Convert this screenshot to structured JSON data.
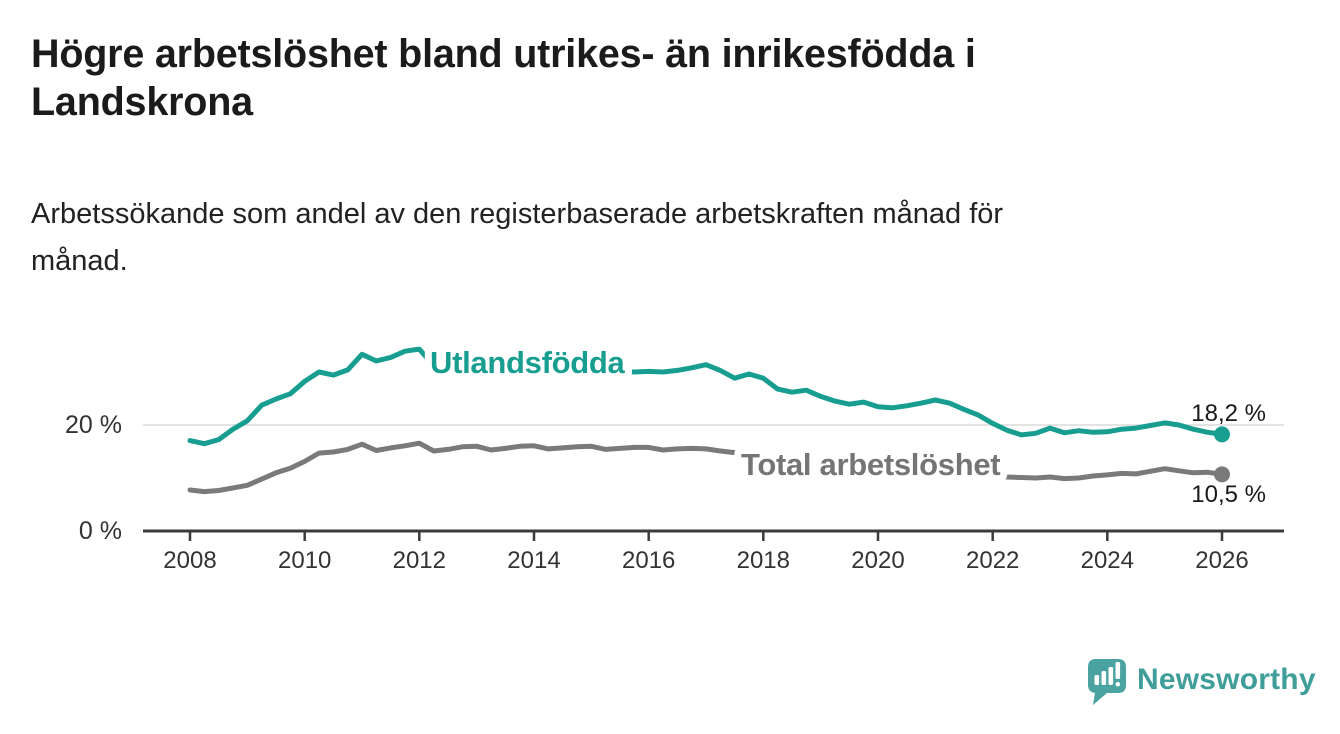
{
  "header": {
    "title_lines": [
      "Högre arbetslöshet bland utrikes- än inrikesfödda i",
      "Landskrona"
    ],
    "subtitle_lines": [
      "Arbetssökande som andel av den registerbaserade arbetskraften månad för",
      "månad."
    ]
  },
  "chart_data": {
    "type": "line",
    "title": "Högre arbetslöshet bland utrikes- än inrikesfödda i Landskrona",
    "subtitle": "Arbetssökande som andel av den registerbaserade arbetskraften månad för månad.",
    "x_unit": "year",
    "x_start": 2008,
    "x_step": 0.25,
    "x_range_shown": [
      2007.2,
      2027.1
    ],
    "ylim": [
      0,
      36
    ],
    "grid": "single horizontal gridline at 20 %",
    "legend_position": "inline-labels-on-lines",
    "x_ticks": [
      2008,
      2010,
      2012,
      2014,
      2016,
      2018,
      2020,
      2022,
      2024,
      2026
    ],
    "y_ticks": [
      {
        "value": 20,
        "label": "20 %"
      },
      {
        "value": 0,
        "label": "0 %"
      }
    ],
    "series": [
      {
        "name": "Utlandsfödda",
        "color": "#189e90",
        "label_color": "#189e90",
        "end_label": "18,2 %",
        "end_value": 18.2,
        "values": [
          17.0,
          16.4,
          17.2,
          19.2,
          20.8,
          23.8,
          25.0,
          26.0,
          28.4,
          30.2,
          29.6,
          30.6,
          33.6,
          32.3,
          33.0,
          34.2,
          34.6,
          31.4,
          31.6,
          31.2,
          31.0,
          30.8,
          30.9,
          30.7,
          30.6,
          30.4,
          30.5,
          30.3,
          30.4,
          30.2,
          30.3,
          30.2,
          30.3,
          30.2,
          30.5,
          31.0,
          31.6,
          30.5,
          29.0,
          29.8,
          29.0,
          26.9,
          26.3,
          26.7,
          25.5,
          24.6,
          24.0,
          24.4,
          23.5,
          23.3,
          23.7,
          24.2,
          24.8,
          24.2,
          23.0,
          21.9,
          20.3,
          19.0,
          18.1,
          18.4,
          19.4,
          18.5,
          18.9,
          18.6,
          18.7,
          19.2,
          19.4,
          19.9,
          20.4,
          20.0,
          19.2,
          18.6,
          18.2
        ]
      },
      {
        "name": "Total arbetslöshet",
        "color": "#7a7a7a",
        "label_color": "#757575",
        "end_label": "10,5 %",
        "end_value": 10.5,
        "values": [
          7.5,
          7.2,
          7.4,
          7.9,
          8.4,
          9.6,
          10.8,
          11.7,
          13.0,
          14.6,
          14.8,
          15.3,
          16.3,
          15.1,
          15.6,
          16.0,
          16.5,
          15.0,
          15.3,
          15.8,
          15.9,
          15.2,
          15.5,
          15.9,
          16.0,
          15.4,
          15.6,
          15.8,
          15.9,
          15.3,
          15.5,
          15.7,
          15.7,
          15.2,
          15.4,
          15.5,
          15.4,
          15.0,
          14.7,
          14.4,
          14.2,
          13.9,
          13.6,
          13.3,
          13.1,
          12.8,
          12.5,
          12.3,
          12.1,
          11.9,
          11.7,
          11.4,
          11.1,
          10.7,
          10.4,
          10.3,
          10.1,
          10.0,
          9.9,
          9.8,
          10.0,
          9.7,
          9.8,
          10.2,
          10.4,
          10.7,
          10.6,
          11.1,
          11.6,
          11.2,
          10.8,
          10.9,
          10.5
        ]
      }
    ]
  },
  "branding": {
    "logo_text": "Newsworthy",
    "logo_text_color": "#3f9d9a",
    "icon_color": "#4aa3a0",
    "icon": "speech-bubble-bar-chart"
  }
}
